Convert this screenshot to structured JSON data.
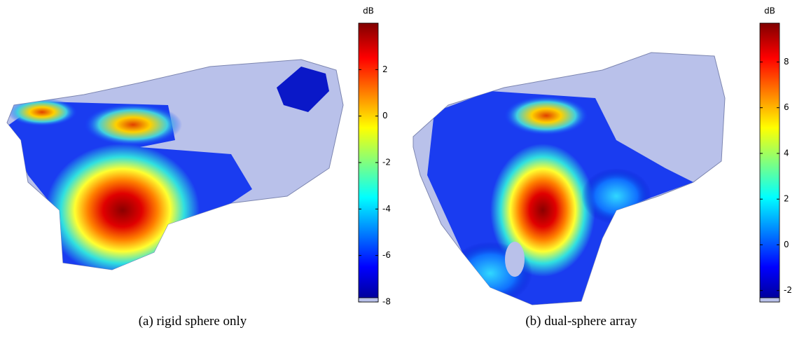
{
  "chart_data": [
    {
      "type": "heatmap",
      "title": "(a) rigid sphere only",
      "colorbar_label": "dB",
      "colormap": "jet",
      "zlim": [
        -8,
        4
      ],
      "zticks": [
        -8,
        -6,
        -4,
        -2,
        0,
        2
      ]
    },
    {
      "type": "heatmap",
      "title": "(b) dual-sphere array",
      "colorbar_label": "dB",
      "colormap": "jet",
      "zlim": [
        -2.5,
        9.7
      ],
      "zticks": [
        -2,
        0,
        2,
        4,
        6,
        8
      ]
    }
  ]
}
